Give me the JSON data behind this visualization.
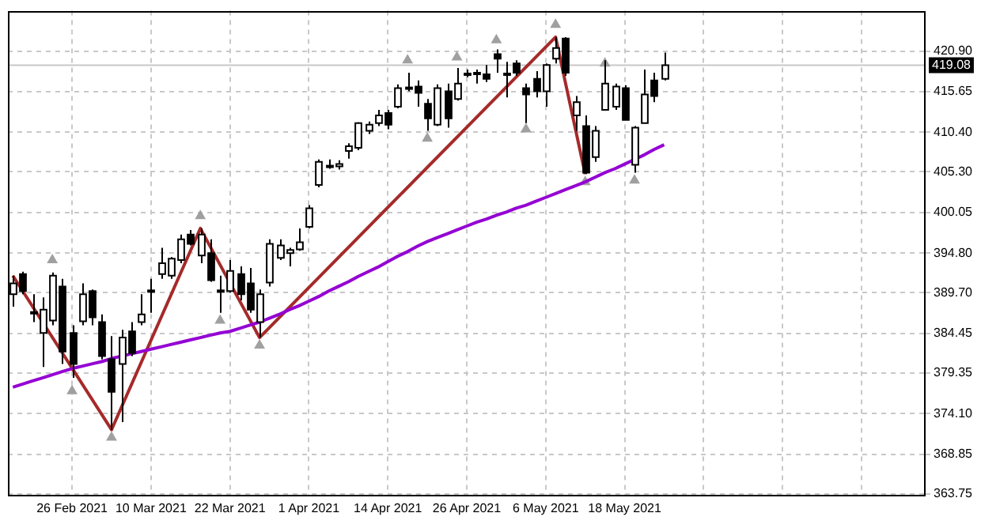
{
  "chart_data": {
    "type": "candlestick",
    "color": "#000000",
    "colors": [
      "#ffffff",
      "#000000",
      "#000000",
      "#ffffff",
      "#ffffff",
      "#000000",
      "#000000",
      "#ffffff",
      "#000000",
      "#000000",
      "#000000",
      "#ffffff",
      "#000000",
      "#ffffff",
      "#000000",
      "#ffffff",
      "#ffffff",
      "#ffffff",
      "#000000",
      "#ffffff",
      "#000000",
      "#000000",
      "#ffffff",
      "#000000",
      "#000000",
      "#ffffff",
      "#ffffff",
      "#ffffff",
      "#ffffff",
      "#ffffff",
      "#ffffff",
      "#ffffff",
      "#ffffff",
      "#ffffff",
      "#ffffff",
      "#ffffff",
      "#ffffff",
      "#ffffff",
      "#000000",
      "#ffffff",
      "#ffffff",
      "#000000",
      "#000000",
      "#ffffff",
      "#000000",
      "#ffffff",
      "#ffffff",
      "#ffffff",
      "#000000",
      "#000000",
      "#ffffff",
      "#000000",
      "#000000",
      "#000000",
      "#ffffff",
      "#ffffff",
      "#000000",
      "#ffffff",
      "#000000",
      "#ffffff",
      "#ffffff",
      "#ffffff",
      "#000000",
      "#ffffff",
      "#ffffff",
      "#000000",
      "#ffffff",
      null,
      null,
      null,
      null,
      null,
      null,
      null,
      null,
      null,
      null,
      null,
      null,
      null,
      null,
      null,
      null,
      null,
      null,
      null,
      null,
      null,
      null,
      null,
      null,
      null,
      null
    ],
    "categories": [
      null,
      null,
      null,
      null,
      null,
      null,
      "26 Feb 2021",
      null,
      null,
      null,
      null,
      null,
      null,
      null,
      "10 Mar 2021",
      null,
      null,
      null,
      null,
      null,
      null,
      null,
      "22 Mar 2021",
      null,
      null,
      null,
      null,
      null,
      null,
      null,
      "1 Apr 2021",
      null,
      null,
      null,
      null,
      null,
      null,
      null,
      "14 Apr 2021",
      null,
      null,
      null,
      null,
      null,
      null,
      null,
      "26 Apr 2021",
      null,
      null,
      null,
      null,
      null,
      null,
      null,
      "6 May 2021",
      null,
      null,
      null,
      null,
      null,
      null,
      null,
      "18 May 2021",
      null,
      null,
      null,
      null,
      null,
      null,
      null,
      null,
      null,
      null,
      null,
      null,
      null,
      null,
      null,
      null,
      null,
      null,
      null,
      null,
      null,
      null,
      null,
      null,
      null,
      null,
      null,
      null,
      null,
      null
    ],
    "ohlc": [
      [
        389.5,
        391.9,
        387.9,
        390.9
      ],
      [
        392.1,
        392.4,
        389.5,
        389.9
      ],
      [
        387.2,
        389.5,
        385.9,
        387.0
      ],
      [
        384.5,
        389.1,
        380.1,
        387.5
      ],
      [
        386.1,
        392.3,
        385.5,
        391.9
      ],
      [
        390.5,
        391.5,
        380.5,
        382.1
      ],
      [
        384.5,
        385.5,
        378.7,
        380.5
      ],
      [
        386.0,
        390.9,
        385.5,
        389.5
      ],
      [
        389.9,
        390.1,
        385.5,
        386.5
      ],
      [
        385.9,
        386.9,
        381.1,
        381.5
      ],
      [
        381.1,
        384.1,
        372.0,
        376.9
      ],
      [
        380.5,
        384.9,
        373.0,
        383.9
      ],
      [
        384.7,
        385.9,
        381.5,
        381.9
      ],
      [
        385.9,
        389.5,
        385.5,
        386.9
      ],
      [
        390.0,
        391.5,
        387.1,
        389.8
      ],
      [
        392.1,
        395.5,
        391.5,
        393.5
      ],
      [
        391.9,
        394.3,
        391.5,
        394.1
      ],
      [
        393.9,
        397.2,
        393.5,
        396.6
      ],
      [
        397.2,
        397.8,
        395.8,
        396.0
      ],
      [
        394.5,
        398.0,
        393.5,
        397.2
      ],
      [
        394.8,
        396.6,
        391.1,
        391.3
      ],
      [
        390.0,
        391.9,
        387.1,
        389.8
      ],
      [
        389.9,
        393.9,
        389.7,
        392.5
      ],
      [
        392.1,
        393.1,
        388.7,
        389.5
      ],
      [
        390.9,
        392.9,
        387.1,
        387.5
      ],
      [
        385.9,
        390.1,
        383.9,
        389.5
      ],
      [
        391.0,
        396.6,
        390.5,
        396.0
      ],
      [
        394.2,
        396.6,
        393.9,
        395.8
      ],
      [
        394.8,
        395.5,
        393.1,
        395.2
      ],
      [
        395.3,
        398.0,
        395.1,
        396.2
      ],
      [
        398.2,
        401.0,
        398.0,
        400.6
      ],
      [
        403.6,
        406.9,
        403.3,
        406.6
      ],
      [
        405.9,
        406.9,
        405.7,
        406.1
      ],
      [
        406.0,
        406.8,
        405.6,
        406.3
      ],
      [
        408.0,
        409.0,
        407.0,
        408.6
      ],
      [
        408.4,
        411.7,
        408.1,
        411.6
      ],
      [
        410.6,
        411.8,
        410.2,
        411.4
      ],
      [
        411.6,
        413.3,
        411.2,
        412.6
      ],
      [
        412.9,
        413.3,
        410.8,
        411.4
      ],
      [
        413.7,
        416.6,
        413.5,
        416.1
      ],
      [
        416.0,
        418.1,
        415.7,
        416.2
      ],
      [
        416.3,
        417.1,
        413.7,
        415.5
      ],
      [
        414.1,
        414.7,
        410.6,
        412.2
      ],
      [
        411.4,
        416.6,
        411.2,
        416.1
      ],
      [
        415.7,
        416.7,
        411.0,
        412.2
      ],
      [
        414.7,
        418.7,
        414.5,
        416.7
      ],
      [
        417.8,
        418.5,
        417.5,
        418.0
      ],
      [
        417.9,
        418.5,
        416.7,
        418.1
      ],
      [
        417.9,
        419.1,
        416.9,
        417.3
      ],
      [
        420.5,
        421.1,
        418.1,
        419.9
      ],
      [
        417.8,
        419.5,
        414.9,
        418.0
      ],
      [
        419.3,
        419.7,
        417.7,
        418.1
      ],
      [
        416.1,
        416.7,
        411.6,
        415.3
      ],
      [
        417.3,
        418.3,
        414.9,
        415.7
      ],
      [
        415.7,
        419.3,
        413.7,
        419.1
      ],
      [
        419.9,
        422.7,
        419.3,
        421.3
      ],
      [
        422.5,
        422.7,
        417.7,
        418.1
      ],
      [
        412.6,
        415.1,
        410.6,
        414.3
      ],
      [
        411.2,
        412.6,
        405.0,
        405.2
      ],
      [
        407.2,
        411.2,
        406.6,
        410.6
      ],
      [
        413.3,
        419.7,
        413.3,
        416.7
      ],
      [
        413.7,
        416.7,
        413.3,
        416.3
      ],
      [
        416.1,
        416.5,
        412.0,
        412.0
      ],
      [
        406.2,
        411.2,
        405.2,
        411.0
      ],
      [
        411.6,
        418.5,
        411.6,
        415.3
      ],
      [
        417.1,
        418.1,
        414.3,
        415.1
      ],
      [
        417.3,
        420.7,
        417.1,
        419.08
      ],
      null,
      null,
      null,
      null,
      null,
      null,
      null,
      null,
      null,
      null,
      null,
      null,
      null,
      null,
      null,
      null,
      null,
      null,
      null,
      null,
      null,
      null,
      null,
      null,
      null,
      null
    ],
    "series": [
      {
        "type": "line",
        "color": "#9400d3",
        "values": [
          377.5,
          377.9,
          378.3,
          378.7,
          379.1,
          379.5,
          379.9,
          380.2,
          380.5,
          380.8,
          381.2,
          381.5,
          381.8,
          382.1,
          382.4,
          382.7,
          383.0,
          383.3,
          383.6,
          383.9,
          384.2,
          384.5,
          384.7,
          385.1,
          385.5,
          385.9,
          386.4,
          386.9,
          387.5,
          388.0,
          388.6,
          389.2,
          389.9,
          390.5,
          391.1,
          391.8,
          392.4,
          393.0,
          393.7,
          394.4,
          395.0,
          395.7,
          396.3,
          396.8,
          397.3,
          397.8,
          398.3,
          398.8,
          399.2,
          399.7,
          400.1,
          400.6,
          401.0,
          401.5,
          402.0,
          402.5,
          403.0,
          403.5,
          404.0,
          404.6,
          405.2,
          405.7,
          406.3,
          406.9,
          407.5,
          408.2,
          408.8,
          null,
          null,
          null,
          null,
          null,
          null,
          null,
          null,
          null,
          null,
          null,
          null,
          null,
          null,
          null,
          null,
          null,
          null,
          null,
          null,
          null,
          null,
          null,
          null,
          null,
          null
        ]
      },
      {
        "type": "line",
        "color": "#a52a2a",
        "values": [
          391.9,
          null,
          null,
          null,
          null,
          null,
          null,
          null,
          null,
          null,
          372.0,
          null,
          null,
          null,
          null,
          null,
          null,
          null,
          null,
          398.0,
          null,
          null,
          null,
          null,
          null,
          383.9,
          null,
          null,
          null,
          null,
          null,
          null,
          null,
          null,
          null,
          null,
          null,
          null,
          null,
          null,
          null,
          null,
          null,
          null,
          null,
          null,
          null,
          null,
          null,
          null,
          null,
          null,
          null,
          null,
          null,
          422.7,
          null,
          null,
          405.0,
          null,
          null,
          null,
          null,
          null,
          null,
          null,
          null,
          null,
          null,
          null,
          null,
          null,
          null,
          null,
          null,
          null,
          null,
          null,
          null,
          null,
          null,
          null,
          null,
          null,
          null,
          null,
          null,
          null,
          null,
          null,
          null,
          null,
          null
        ]
      },
      {
        "type": "scatter",
        "color": "#a0a0a0",
        "marker": "triangle",
        "values": [
          null,
          null,
          null,
          null,
          393.9,
          null,
          377.0,
          null,
          null,
          null,
          371.0,
          null,
          null,
          null,
          null,
          null,
          null,
          null,
          null,
          399.6,
          null,
          386.1,
          null,
          null,
          null,
          382.9,
          null,
          null,
          null,
          null,
          null,
          null,
          null,
          null,
          null,
          null,
          null,
          null,
          null,
          null,
          419.7,
          null,
          409.6,
          null,
          null,
          420.1,
          null,
          null,
          null,
          422.3,
          null,
          null,
          410.8,
          null,
          null,
          424.3,
          null,
          null,
          404.0,
          null,
          419.3,
          null,
          null,
          404.2,
          null,
          null,
          null,
          null,
          null,
          null,
          null,
          null,
          null,
          null,
          null,
          null,
          null,
          null,
          null,
          null,
          null,
          null,
          null,
          null,
          null,
          null,
          null,
          null,
          null,
          null,
          null,
          null,
          null
        ]
      }
    ],
    "ylim": [
      363.6,
      426.1
    ],
    "yticks": [
      363.75,
      368.85,
      {
        "value": 374.1,
        "label": "374.10"
      },
      379.35,
      384.45,
      {
        "value": 389.7,
        "label": "389.70"
      },
      {
        "value": 394.8,
        "label": "394.80"
      },
      400.05,
      {
        "value": 405.3,
        "label": "405.30"
      },
      {
        "value": 410.4,
        "label": "410.40"
      },
      415.65,
      {
        "value": 420.9,
        "label": "420.90"
      }
    ],
    "ref_lines": [
      {
        "axis": "y",
        "value": 419.08,
        "label": "419.08",
        "color": "#c8c8c8"
      }
    ],
    "grid": true,
    "legend": false
  }
}
